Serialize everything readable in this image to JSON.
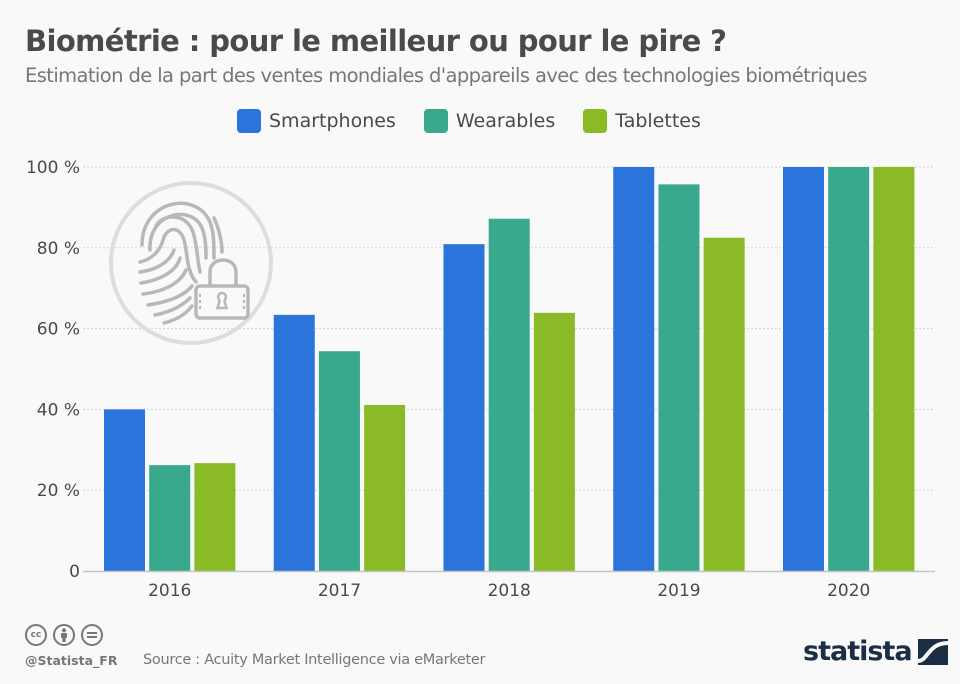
{
  "header": {
    "title": "Biométrie : pour le meilleur ou pour le pire ?",
    "subtitle": "Estimation de la part des ventes mondiales d'appareils avec des technologies biométriques"
  },
  "colors": {
    "smartphones": "#2a74dc",
    "wearables": "#39a98e",
    "tablettes": "#8aba26",
    "icon_gray": "#b8b8b8",
    "circle_gray": "#dddddd"
  },
  "icon": {
    "name": "fingerprint-lock-icon"
  },
  "chart_data": {
    "type": "bar",
    "title": "Biométrie : pour le meilleur ou pour le pire ?",
    "subtitle": "Estimation de la part des ventes mondiales d'appareils avec des technologies biométriques",
    "xlabel": "",
    "ylabel": "",
    "categories": [
      "2016",
      "2017",
      "2018",
      "2019",
      "2020"
    ],
    "series": [
      {
        "name": "Smartphones",
        "color": "#2a74dc",
        "values": [
          40,
          63.4,
          80.9,
          100,
          100
        ]
      },
      {
        "name": "Wearables",
        "color": "#39a98e",
        "values": [
          26.2,
          54.4,
          87.2,
          95.7,
          100
        ]
      },
      {
        "name": "Tablettes",
        "color": "#8aba26",
        "values": [
          26.7,
          41.1,
          63.9,
          82.5,
          100
        ]
      }
    ],
    "ylim": [
      0,
      100
    ],
    "yticks": [
      0,
      20,
      40,
      60,
      80,
      100
    ],
    "ytick_labels": [
      "0",
      "20  %",
      "40  %",
      "60  %",
      "80 %",
      "100 %"
    ],
    "grid": true,
    "legend_position": "top-center"
  },
  "footer": {
    "handle": "@Statista_FR",
    "source": "Source : Acuity Market Intelligence via eMarketer",
    "license_icons": [
      "cc-icon",
      "by-icon",
      "nd-icon"
    ],
    "cc_label": "cc",
    "brand": "statista"
  }
}
